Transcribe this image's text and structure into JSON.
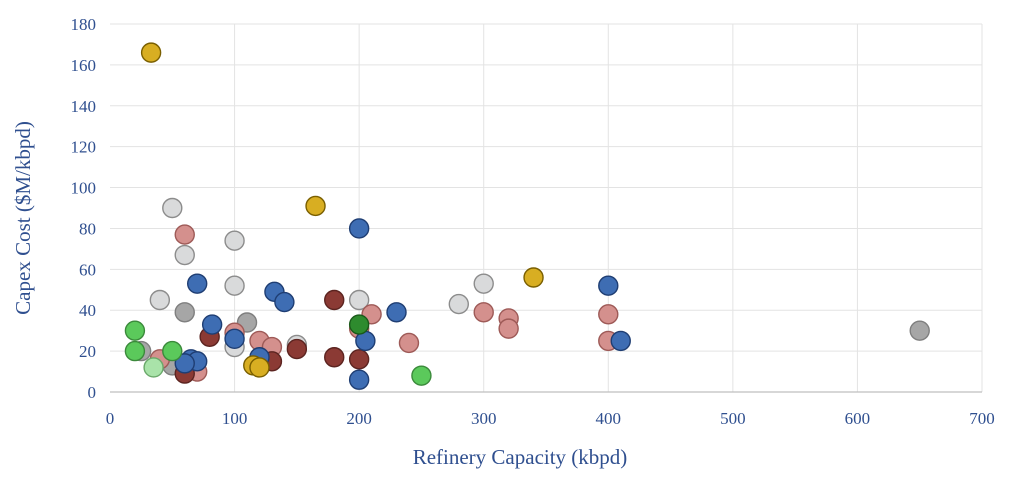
{
  "chart_data": {
    "type": "scatter",
    "xlabel": "Refinery Capacity (kbpd)",
    "ylabel": "Capex Cost ($M/kbpd)",
    "xlim": [
      0,
      700
    ],
    "ylim": [
      0,
      180
    ],
    "xticks": [
      0,
      100,
      200,
      300,
      400,
      500,
      600,
      700
    ],
    "yticks": [
      0,
      20,
      40,
      60,
      80,
      100,
      120,
      140,
      160,
      180
    ],
    "grid": true,
    "legend": "none",
    "series": [
      {
        "color": "#d9dadb",
        "stroke": "#8c8c8c",
        "points": [
          [
            50,
            90
          ],
          [
            60,
            67
          ],
          [
            40,
            45
          ],
          [
            100,
            74
          ],
          [
            100,
            52
          ],
          [
            100,
            22
          ],
          [
            150,
            23
          ],
          [
            200,
            45
          ],
          [
            280,
            43
          ],
          [
            300,
            53
          ]
        ]
      },
      {
        "color": "#a6a6a6",
        "stroke": "#7f7f7f",
        "points": [
          [
            60,
            39
          ],
          [
            110,
            34
          ],
          [
            25,
            20
          ],
          [
            50,
            13
          ],
          [
            650,
            30
          ]
        ]
      },
      {
        "color": "#d4908d",
        "stroke": "#9e5a57",
        "points": [
          [
            60,
            77
          ],
          [
            100,
            29
          ],
          [
            120,
            25
          ],
          [
            130,
            22
          ],
          [
            70,
            10
          ],
          [
            40,
            16
          ],
          [
            200,
            31
          ],
          [
            210,
            38
          ],
          [
            240,
            24
          ],
          [
            300,
            39
          ],
          [
            320,
            36
          ],
          [
            320,
            31
          ],
          [
            400,
            38
          ],
          [
            400,
            25
          ]
        ]
      },
      {
        "color": "#8b3a34",
        "stroke": "#5c2420",
        "points": [
          [
            80,
            27
          ],
          [
            60,
            9
          ],
          [
            130,
            15
          ],
          [
            150,
            21
          ],
          [
            180,
            17
          ],
          [
            180,
            45
          ],
          [
            200,
            16
          ]
        ]
      },
      {
        "color": "#3e6db3",
        "stroke": "#1f3e73",
        "points": [
          [
            70,
            53
          ],
          [
            82,
            33
          ],
          [
            100,
            26
          ],
          [
            65,
            16
          ],
          [
            70,
            15
          ],
          [
            60,
            14
          ],
          [
            120,
            17
          ],
          [
            132,
            49
          ],
          [
            140,
            44
          ],
          [
            200,
            80
          ],
          [
            205,
            25
          ],
          [
            200,
            6
          ],
          [
            230,
            39
          ],
          [
            400,
            52
          ],
          [
            410,
            25
          ]
        ]
      },
      {
        "color": "#5bc95b",
        "stroke": "#3b8a3b",
        "points": [
          [
            20,
            30
          ],
          [
            20,
            20
          ],
          [
            50,
            20
          ],
          [
            250,
            8
          ]
        ]
      },
      {
        "color": "#a9e3a9",
        "stroke": "#6aa86a",
        "points": [
          [
            35,
            12
          ]
        ]
      },
      {
        "color": "#2e8b2e",
        "stroke": "#1a5a1a",
        "points": [
          [
            200,
            33
          ]
        ]
      },
      {
        "color": "#d8ae22",
        "stroke": "#7a5f00",
        "points": [
          [
            33,
            166
          ],
          [
            165,
            91
          ],
          [
            340,
            56
          ],
          [
            115,
            13
          ],
          [
            120,
            12
          ]
        ]
      }
    ]
  }
}
